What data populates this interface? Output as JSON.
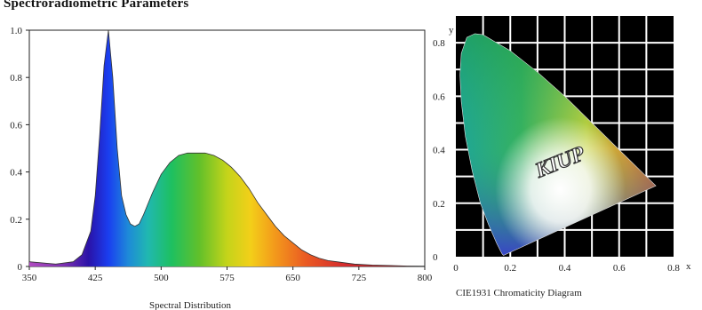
{
  "page": {
    "title": "Spectroradiometric Parameters"
  },
  "colors": {
    "cie_background": "#000000",
    "axis": "#222222"
  },
  "chart_data": [
    {
      "type": "area",
      "title": "",
      "caption": "Spectral Distribution",
      "xlim": [
        350,
        800
      ],
      "ylim": [
        0,
        1.0
      ],
      "x_ticks": [
        "350",
        "425",
        "500",
        "575",
        "650",
        "725",
        "800"
      ],
      "y_ticks": [
        "0",
        "0.2",
        "0.4",
        "0.6",
        "0.8",
        "1.0"
      ],
      "x": [
        350,
        380,
        400,
        410,
        420,
        425,
        430,
        435,
        440,
        445,
        450,
        455,
        460,
        465,
        470,
        475,
        480,
        490,
        500,
        510,
        520,
        530,
        540,
        550,
        560,
        570,
        580,
        590,
        600,
        610,
        620,
        630,
        640,
        650,
        660,
        670,
        680,
        690,
        700,
        720,
        740,
        760,
        780,
        800
      ],
      "values": [
        0.02,
        0.01,
        0.02,
        0.05,
        0.15,
        0.3,
        0.55,
        0.85,
        1.0,
        0.8,
        0.5,
        0.3,
        0.22,
        0.18,
        0.17,
        0.18,
        0.22,
        0.31,
        0.39,
        0.44,
        0.47,
        0.48,
        0.48,
        0.48,
        0.47,
        0.45,
        0.42,
        0.38,
        0.33,
        0.27,
        0.22,
        0.17,
        0.13,
        0.1,
        0.07,
        0.05,
        0.035,
        0.025,
        0.02,
        0.01,
        0.006,
        0.004,
        0.002,
        0.001
      ]
    },
    {
      "type": "scatter",
      "title": "",
      "caption": "CIE1931 Chromaticity Diagram",
      "xlabel": "x",
      "ylabel": "y",
      "xlim": [
        0,
        0.8
      ],
      "ylim": [
        0,
        0.9
      ],
      "x_ticks": [
        "0",
        "0.2",
        "0.4",
        "0.6",
        "0.8"
      ],
      "y_ticks": [
        "0",
        "0.2",
        "0.4",
        "0.6",
        "0.8"
      ],
      "grid": true,
      "watermark_text": "KIUP",
      "locus": [
        [
          0.175,
          0.005
        ],
        [
          0.17,
          0.01
        ],
        [
          0.165,
          0.02
        ],
        [
          0.15,
          0.05
        ],
        [
          0.12,
          0.12
        ],
        [
          0.09,
          0.2
        ],
        [
          0.06,
          0.32
        ],
        [
          0.035,
          0.45
        ],
        [
          0.02,
          0.58
        ],
        [
          0.015,
          0.68
        ],
        [
          0.02,
          0.76
        ],
        [
          0.04,
          0.82
        ],
        [
          0.07,
          0.834
        ],
        [
          0.1,
          0.83
        ],
        [
          0.15,
          0.8
        ],
        [
          0.2,
          0.77
        ],
        [
          0.25,
          0.73
        ],
        [
          0.3,
          0.69
        ],
        [
          0.35,
          0.645
        ],
        [
          0.4,
          0.6
        ],
        [
          0.45,
          0.55
        ],
        [
          0.5,
          0.5
        ],
        [
          0.55,
          0.45
        ],
        [
          0.6,
          0.4
        ],
        [
          0.65,
          0.35
        ],
        [
          0.7,
          0.3
        ],
        [
          0.735,
          0.265
        ]
      ]
    }
  ]
}
